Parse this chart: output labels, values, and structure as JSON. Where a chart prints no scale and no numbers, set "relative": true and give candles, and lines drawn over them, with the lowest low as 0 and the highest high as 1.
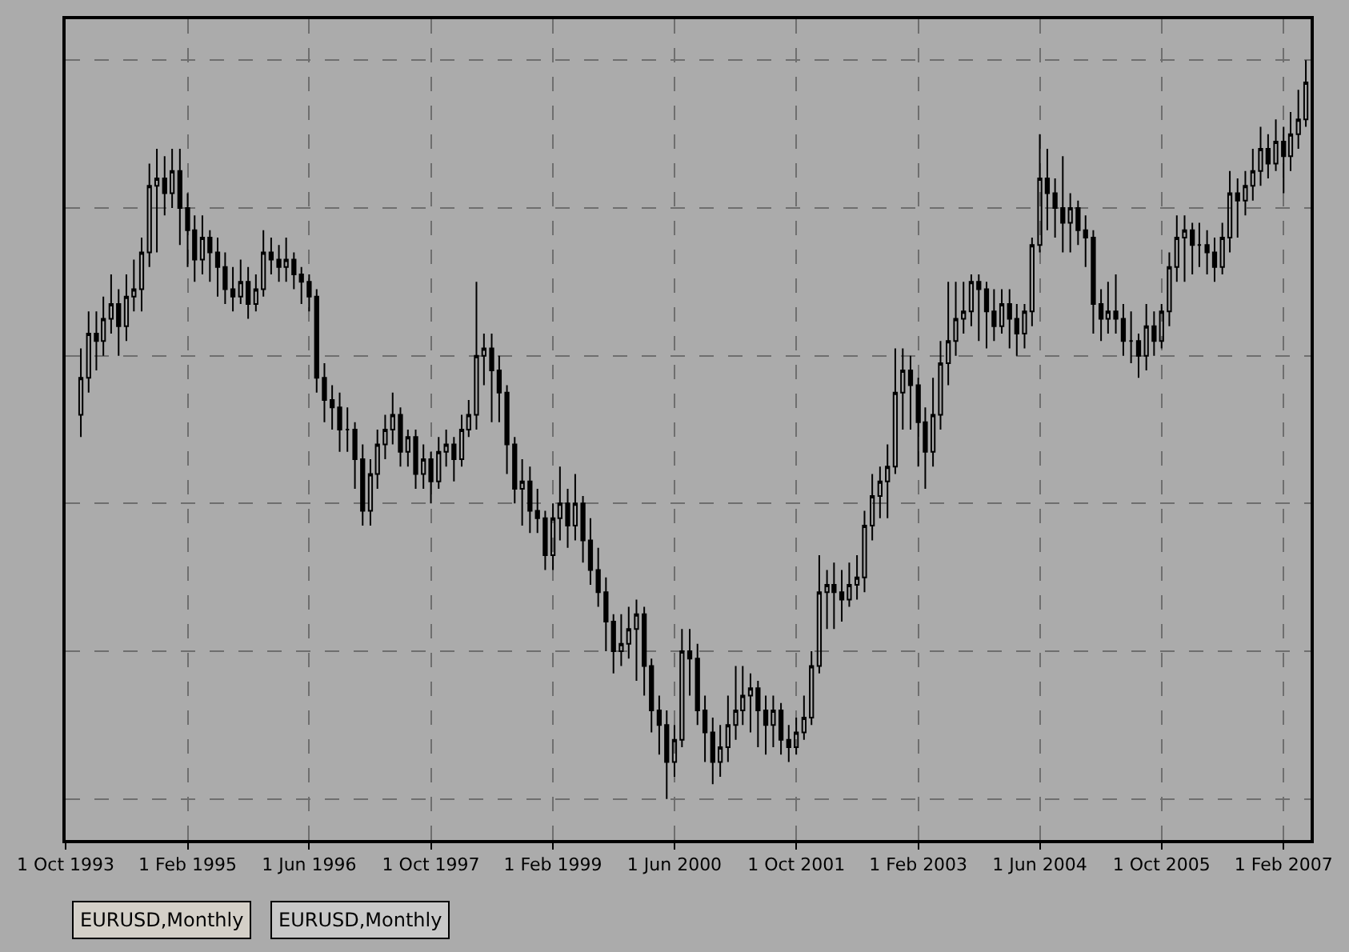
{
  "chart_data": {
    "type": "candlestick",
    "relative": true,
    "grid": true,
    "color": "#000000",
    "x": [
      "1993-12",
      "1994-01",
      "1994-02",
      "1994-03",
      "1994-04",
      "1994-05",
      "1994-06",
      "1994-07",
      "1994-08",
      "1994-09",
      "1994-10",
      "1994-11",
      "1994-12",
      "1995-01",
      "1995-02",
      "1995-03",
      "1995-04",
      "1995-05",
      "1995-06",
      "1995-07",
      "1995-08",
      "1995-09",
      "1995-10",
      "1995-11",
      "1995-12",
      "1996-01",
      "1996-02",
      "1996-03",
      "1996-04",
      "1996-05",
      "1996-06",
      "1996-07",
      "1996-08",
      "1996-09",
      "1996-10",
      "1996-11",
      "1996-12",
      "1997-01",
      "1997-02",
      "1997-03",
      "1997-04",
      "1997-05",
      "1997-06",
      "1997-07",
      "1997-08",
      "1997-09",
      "1997-10",
      "1997-11",
      "1997-12",
      "1998-01",
      "1998-02",
      "1998-03",
      "1998-04",
      "1998-05",
      "1998-06",
      "1998-07",
      "1998-08",
      "1998-09",
      "1998-10",
      "1998-11",
      "1998-12",
      "1999-01",
      "1999-02",
      "1999-03",
      "1999-04",
      "1999-05",
      "1999-06",
      "1999-07",
      "1999-08",
      "1999-09",
      "1999-10",
      "1999-11",
      "1999-12",
      "2000-01",
      "2000-02",
      "2000-03",
      "2000-04",
      "2000-05",
      "2000-06",
      "2000-07",
      "2000-08",
      "2000-09",
      "2000-10",
      "2000-11",
      "2000-12",
      "2001-01",
      "2001-02",
      "2001-03",
      "2001-04",
      "2001-05",
      "2001-06",
      "2001-07",
      "2001-08",
      "2001-09",
      "2001-10",
      "2001-11",
      "2001-12",
      "2002-01",
      "2002-02",
      "2002-03",
      "2002-04",
      "2002-05",
      "2002-06",
      "2002-07",
      "2002-08",
      "2002-09",
      "2002-10",
      "2002-11",
      "2002-12",
      "2003-01",
      "2003-02",
      "2003-03",
      "2003-04",
      "2003-05",
      "2003-06",
      "2003-07",
      "2003-08",
      "2003-09",
      "2003-10",
      "2003-11",
      "2003-12",
      "2004-01",
      "2004-02",
      "2004-03",
      "2004-04",
      "2004-05",
      "2004-06",
      "2004-07",
      "2004-08",
      "2004-09",
      "2004-10",
      "2004-11",
      "2004-12",
      "2005-01",
      "2005-02",
      "2005-03",
      "2005-04",
      "2005-05",
      "2005-06",
      "2005-07",
      "2005-08",
      "2005-09",
      "2005-10",
      "2005-11",
      "2005-12",
      "2006-01",
      "2006-02",
      "2006-03",
      "2006-04",
      "2006-05",
      "2006-06",
      "2006-07",
      "2006-08",
      "2006-09",
      "2006-10",
      "2006-11",
      "2006-12",
      "2007-01",
      "2007-02",
      "2007-03",
      "2007-04",
      "2007-05"
    ],
    "ohlc": [
      [
        0.52,
        0.61,
        0.49,
        0.57
      ],
      [
        0.57,
        0.66,
        0.55,
        0.63
      ],
      [
        0.63,
        0.66,
        0.58,
        0.62
      ],
      [
        0.62,
        0.68,
        0.6,
        0.65
      ],
      [
        0.65,
        0.71,
        0.63,
        0.67
      ],
      [
        0.67,
        0.69,
        0.6,
        0.64
      ],
      [
        0.64,
        0.71,
        0.62,
        0.68
      ],
      [
        0.68,
        0.73,
        0.66,
        0.69
      ],
      [
        0.69,
        0.76,
        0.66,
        0.74
      ],
      [
        0.74,
        0.86,
        0.72,
        0.83
      ],
      [
        0.83,
        0.88,
        0.74,
        0.84
      ],
      [
        0.84,
        0.87,
        0.79,
        0.82
      ],
      [
        0.82,
        0.88,
        0.8,
        0.85
      ],
      [
        0.85,
        0.88,
        0.75,
        0.8
      ],
      [
        0.8,
        0.82,
        0.72,
        0.77
      ],
      [
        0.77,
        0.79,
        0.7,
        0.73
      ],
      [
        0.73,
        0.79,
        0.71,
        0.76
      ],
      [
        0.76,
        0.77,
        0.7,
        0.74
      ],
      [
        0.74,
        0.76,
        0.68,
        0.72
      ],
      [
        0.72,
        0.74,
        0.67,
        0.69
      ],
      [
        0.69,
        0.72,
        0.66,
        0.68
      ],
      [
        0.68,
        0.73,
        0.67,
        0.7
      ],
      [
        0.7,
        0.72,
        0.65,
        0.67
      ],
      [
        0.67,
        0.71,
        0.66,
        0.69
      ],
      [
        0.69,
        0.77,
        0.68,
        0.74
      ],
      [
        0.74,
        0.76,
        0.71,
        0.73
      ],
      [
        0.73,
        0.75,
        0.7,
        0.72
      ],
      [
        0.72,
        0.76,
        0.7,
        0.73
      ],
      [
        0.73,
        0.74,
        0.69,
        0.71
      ],
      [
        0.71,
        0.72,
        0.67,
        0.7
      ],
      [
        0.7,
        0.71,
        0.66,
        0.68
      ],
      [
        0.68,
        0.69,
        0.55,
        0.57
      ],
      [
        0.57,
        0.59,
        0.51,
        0.54
      ],
      [
        0.54,
        0.56,
        0.5,
        0.53
      ],
      [
        0.53,
        0.55,
        0.47,
        0.5
      ],
      [
        0.5,
        0.53,
        0.47,
        0.5
      ],
      [
        0.5,
        0.51,
        0.42,
        0.46
      ],
      [
        0.46,
        0.48,
        0.37,
        0.39
      ],
      [
        0.39,
        0.46,
        0.37,
        0.44
      ],
      [
        0.44,
        0.5,
        0.42,
        0.48
      ],
      [
        0.48,
        0.52,
        0.46,
        0.5
      ],
      [
        0.5,
        0.55,
        0.48,
        0.52
      ],
      [
        0.52,
        0.53,
        0.45,
        0.47
      ],
      [
        0.47,
        0.5,
        0.45,
        0.49
      ],
      [
        0.49,
        0.5,
        0.42,
        0.44
      ],
      [
        0.44,
        0.48,
        0.42,
        0.46
      ],
      [
        0.46,
        0.47,
        0.4,
        0.43
      ],
      [
        0.43,
        0.49,
        0.42,
        0.47
      ],
      [
        0.47,
        0.5,
        0.45,
        0.48
      ],
      [
        0.48,
        0.49,
        0.43,
        0.46
      ],
      [
        0.46,
        0.52,
        0.45,
        0.5
      ],
      [
        0.5,
        0.54,
        0.49,
        0.52
      ],
      [
        0.52,
        0.7,
        0.5,
        0.6
      ],
      [
        0.6,
        0.63,
        0.56,
        0.61
      ],
      [
        0.61,
        0.63,
        0.51,
        0.58
      ],
      [
        0.58,
        0.6,
        0.51,
        0.55
      ],
      [
        0.55,
        0.56,
        0.44,
        0.48
      ],
      [
        0.48,
        0.49,
        0.4,
        0.42
      ],
      [
        0.42,
        0.46,
        0.37,
        0.43
      ],
      [
        0.43,
        0.45,
        0.36,
        0.39
      ],
      [
        0.39,
        0.42,
        0.36,
        0.38
      ],
      [
        0.38,
        0.39,
        0.31,
        0.33
      ],
      [
        0.33,
        0.4,
        0.31,
        0.38
      ],
      [
        0.38,
        0.45,
        0.35,
        0.4
      ],
      [
        0.4,
        0.42,
        0.34,
        0.37
      ],
      [
        0.37,
        0.44,
        0.35,
        0.4
      ],
      [
        0.4,
        0.41,
        0.32,
        0.35
      ],
      [
        0.35,
        0.38,
        0.29,
        0.31
      ],
      [
        0.31,
        0.34,
        0.26,
        0.28
      ],
      [
        0.28,
        0.3,
        0.2,
        0.24
      ],
      [
        0.24,
        0.25,
        0.17,
        0.2
      ],
      [
        0.2,
        0.25,
        0.18,
        0.21
      ],
      [
        0.21,
        0.26,
        0.19,
        0.23
      ],
      [
        0.23,
        0.27,
        0.16,
        0.25
      ],
      [
        0.25,
        0.26,
        0.14,
        0.18
      ],
      [
        0.18,
        0.19,
        0.09,
        0.12
      ],
      [
        0.12,
        0.14,
        0.06,
        0.1
      ],
      [
        0.1,
        0.12,
        0.0,
        0.05
      ],
      [
        0.05,
        0.1,
        0.03,
        0.08
      ],
      [
        0.08,
        0.23,
        0.07,
        0.2
      ],
      [
        0.2,
        0.23,
        0.14,
        0.19
      ],
      [
        0.19,
        0.21,
        0.1,
        0.12
      ],
      [
        0.12,
        0.14,
        0.05,
        0.09
      ],
      [
        0.09,
        0.11,
        0.02,
        0.05
      ],
      [
        0.05,
        0.1,
        0.03,
        0.07
      ],
      [
        0.07,
        0.14,
        0.05,
        0.1
      ],
      [
        0.1,
        0.18,
        0.08,
        0.12
      ],
      [
        0.12,
        0.18,
        0.1,
        0.14
      ],
      [
        0.14,
        0.17,
        0.09,
        0.15
      ],
      [
        0.15,
        0.16,
        0.07,
        0.12
      ],
      [
        0.12,
        0.14,
        0.06,
        0.1
      ],
      [
        0.1,
        0.14,
        0.07,
        0.12
      ],
      [
        0.12,
        0.13,
        0.06,
        0.08
      ],
      [
        0.08,
        0.1,
        0.05,
        0.07
      ],
      [
        0.07,
        0.11,
        0.06,
        0.09
      ],
      [
        0.09,
        0.14,
        0.08,
        0.11
      ],
      [
        0.11,
        0.2,
        0.1,
        0.18
      ],
      [
        0.18,
        0.33,
        0.17,
        0.28
      ],
      [
        0.28,
        0.31,
        0.23,
        0.29
      ],
      [
        0.29,
        0.32,
        0.23,
        0.28
      ],
      [
        0.28,
        0.31,
        0.24,
        0.27
      ],
      [
        0.27,
        0.32,
        0.26,
        0.29
      ],
      [
        0.29,
        0.33,
        0.27,
        0.3
      ],
      [
        0.3,
        0.39,
        0.28,
        0.37
      ],
      [
        0.37,
        0.44,
        0.35,
        0.41
      ],
      [
        0.41,
        0.45,
        0.38,
        0.43
      ],
      [
        0.43,
        0.48,
        0.38,
        0.45
      ],
      [
        0.45,
        0.61,
        0.44,
        0.55
      ],
      [
        0.55,
        0.61,
        0.5,
        0.58
      ],
      [
        0.58,
        0.6,
        0.5,
        0.56
      ],
      [
        0.56,
        0.57,
        0.45,
        0.51
      ],
      [
        0.51,
        0.53,
        0.42,
        0.47
      ],
      [
        0.47,
        0.57,
        0.45,
        0.52
      ],
      [
        0.52,
        0.62,
        0.5,
        0.59
      ],
      [
        0.59,
        0.7,
        0.56,
        0.62
      ],
      [
        0.62,
        0.7,
        0.6,
        0.65
      ],
      [
        0.65,
        0.7,
        0.63,
        0.66
      ],
      [
        0.66,
        0.71,
        0.64,
        0.7
      ],
      [
        0.7,
        0.71,
        0.62,
        0.69
      ],
      [
        0.69,
        0.7,
        0.61,
        0.66
      ],
      [
        0.66,
        0.69,
        0.62,
        0.64
      ],
      [
        0.64,
        0.69,
        0.63,
        0.67
      ],
      [
        0.67,
        0.69,
        0.61,
        0.65
      ],
      [
        0.65,
        0.67,
        0.6,
        0.63
      ],
      [
        0.63,
        0.67,
        0.61,
        0.66
      ],
      [
        0.66,
        0.76,
        0.64,
        0.75
      ],
      [
        0.75,
        0.9,
        0.74,
        0.84
      ],
      [
        0.84,
        0.88,
        0.77,
        0.82
      ],
      [
        0.82,
        0.84,
        0.76,
        0.8
      ],
      [
        0.8,
        0.87,
        0.74,
        0.78
      ],
      [
        0.78,
        0.82,
        0.74,
        0.8
      ],
      [
        0.8,
        0.81,
        0.75,
        0.77
      ],
      [
        0.77,
        0.79,
        0.72,
        0.76
      ],
      [
        0.76,
        0.77,
        0.63,
        0.67
      ],
      [
        0.67,
        0.69,
        0.62,
        0.65
      ],
      [
        0.65,
        0.7,
        0.63,
        0.66
      ],
      [
        0.66,
        0.71,
        0.63,
        0.65
      ],
      [
        0.65,
        0.67,
        0.6,
        0.62
      ],
      [
        0.62,
        0.66,
        0.59,
        0.62
      ],
      [
        0.62,
        0.63,
        0.57,
        0.6
      ],
      [
        0.6,
        0.67,
        0.58,
        0.64
      ],
      [
        0.64,
        0.66,
        0.6,
        0.62
      ],
      [
        0.62,
        0.67,
        0.61,
        0.66
      ],
      [
        0.66,
        0.74,
        0.64,
        0.72
      ],
      [
        0.72,
        0.79,
        0.7,
        0.76
      ],
      [
        0.76,
        0.79,
        0.7,
        0.77
      ],
      [
        0.77,
        0.78,
        0.71,
        0.75
      ],
      [
        0.75,
        0.78,
        0.72,
        0.75
      ],
      [
        0.75,
        0.77,
        0.71,
        0.74
      ],
      [
        0.74,
        0.76,
        0.7,
        0.72
      ],
      [
        0.72,
        0.78,
        0.71,
        0.76
      ],
      [
        0.76,
        0.85,
        0.74,
        0.82
      ],
      [
        0.82,
        0.84,
        0.76,
        0.81
      ],
      [
        0.81,
        0.85,
        0.79,
        0.83
      ],
      [
        0.83,
        0.88,
        0.81,
        0.85
      ],
      [
        0.85,
        0.91,
        0.83,
        0.88
      ],
      [
        0.88,
        0.9,
        0.84,
        0.86
      ],
      [
        0.86,
        0.92,
        0.85,
        0.89
      ],
      [
        0.89,
        0.91,
        0.82,
        0.87
      ],
      [
        0.87,
        0.93,
        0.85,
        0.9
      ],
      [
        0.9,
        0.96,
        0.88,
        0.92
      ],
      [
        0.92,
        1.0,
        0.91,
        0.97
      ]
    ],
    "xlim": [
      "1993-10-01",
      "2007-05-20"
    ],
    "xticks": [
      {
        "value": "1993-10-01",
        "label": "1 Oct 1993"
      },
      {
        "value": "1995-02-01",
        "label": "1 Feb 1995"
      },
      {
        "value": "1996-06-01",
        "label": "1 Jun 1996"
      },
      {
        "value": "1997-10-01",
        "label": "1 Oct 1997"
      },
      {
        "value": "1999-02-01",
        "label": "1 Feb 1999"
      },
      {
        "value": "2000-06-01",
        "label": "1 Jun 2000"
      },
      {
        "value": "2001-10-01",
        "label": "1 Oct 2001"
      },
      {
        "value": "2003-02-01",
        "label": "1 Feb 2003"
      },
      {
        "value": "2004-06-01",
        "label": "1 Jun 2004"
      },
      {
        "value": "2005-10-01",
        "label": "1 Oct 2005"
      },
      {
        "value": "2007-02-01",
        "label": "1 Feb 2007"
      }
    ],
    "annotations": [
      "EURUSD,Monthly",
      "EURUSD,Monthly"
    ]
  }
}
